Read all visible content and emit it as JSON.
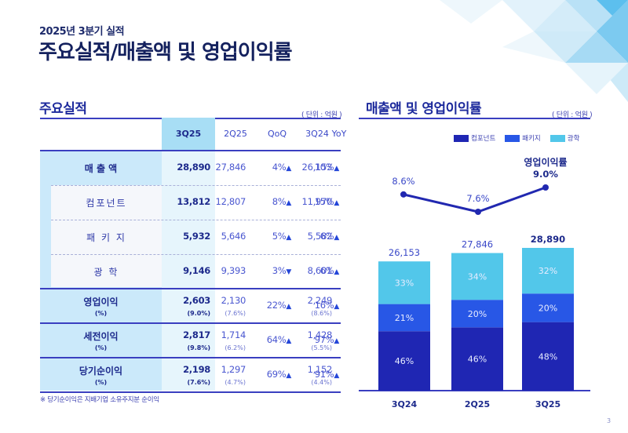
{
  "header": {
    "subtitle": "2025년 3분기 실적",
    "title": "주요실적/매출액 및 영업이익률"
  },
  "table_section": {
    "title": "주요실적",
    "unit": "( 단위 : 억원 )",
    "columns": [
      "3Q25",
      "2Q25",
      "QoQ",
      "3Q24",
      "YoY"
    ],
    "rows": [
      {
        "label": "매 출 액",
        "pct_label": "",
        "q3_25": "28,890",
        "q3_25_pct": "",
        "q2_25": "27,846",
        "q2_25_pct": "",
        "qoq": "4%",
        "qoq_dir": "▲",
        "q3_24": "26,153",
        "q3_24_pct": "",
        "yoy": "10%",
        "yoy_dir": "▲"
      },
      {
        "label": "컴포넌트",
        "pct_label": "",
        "q3_25": "13,812",
        "q3_25_pct": "",
        "q2_25": "12,807",
        "q2_25_pct": "",
        "qoq": "8%",
        "qoq_dir": "▲",
        "q3_24": "11,970",
        "q3_24_pct": "",
        "yoy": "15%",
        "yoy_dir": "▲"
      },
      {
        "label": "패 키 지",
        "pct_label": "",
        "q3_25": "5,932",
        "q3_25_pct": "",
        "q2_25": "5,646",
        "q2_25_pct": "",
        "qoq": "5%",
        "qoq_dir": "▲",
        "q3_24": "5,582",
        "q3_24_pct": "",
        "yoy": "6%",
        "yoy_dir": "▲"
      },
      {
        "label": "광    학",
        "pct_label": "",
        "q3_25": "9,146",
        "q3_25_pct": "",
        "q2_25": "9,393",
        "q2_25_pct": "",
        "qoq": "3%",
        "qoq_dir": "▼",
        "q3_24": "8,601",
        "q3_24_pct": "",
        "yoy": "6%",
        "yoy_dir": "▲"
      },
      {
        "label": "영업이익",
        "pct_label": "(%)",
        "q3_25": "2,603",
        "q3_25_pct": "(9.0%)",
        "q2_25": "2,130",
        "q2_25_pct": "(7.6%)",
        "qoq": "22%",
        "qoq_dir": "▲",
        "q3_24": "2,249",
        "q3_24_pct": "(8.6%)",
        "yoy": "16%",
        "yoy_dir": "▲"
      },
      {
        "label": "세전이익",
        "pct_label": "(%)",
        "q3_25": "2,817",
        "q3_25_pct": "(9.8%)",
        "q2_25": "1,714",
        "q2_25_pct": "(6.2%)",
        "qoq": "64%",
        "qoq_dir": "▲",
        "q3_24": "1,428",
        "q3_24_pct": "(5.5%)",
        "yoy": "97%",
        "yoy_dir": "▲"
      },
      {
        "label": "당기순이익",
        "pct_label": "(%)",
        "q3_25": "2,198",
        "q3_25_pct": "(7.6%)",
        "q2_25": "1,297",
        "q2_25_pct": "(4.7%)",
        "qoq": "69%",
        "qoq_dir": "▲",
        "q3_24": "1,152",
        "q3_24_pct": "(4.4%)",
        "yoy": "91%",
        "yoy_dir": "▲"
      }
    ],
    "footnote": "※ 당기순이익은 지배기업 소유주지분 순이익"
  },
  "chart_section": {
    "title": "매출액 및 영업이익률",
    "unit": "( 단위 : 억원 )"
  },
  "colors": {
    "component": "#1f26b3",
    "package": "#2857e6",
    "optics": "#52c7ea",
    "line": "#2128b0",
    "text_dark": "#1d2a8c"
  },
  "chart_data": {
    "type": "bar",
    "stacked": true,
    "title": "매출액 및 영업이익률",
    "unit": "억원",
    "categories": [
      "3Q24",
      "2Q25",
      "3Q25"
    ],
    "totals": [
      26153,
      27846,
      28890
    ],
    "total_labels": [
      "26,153",
      "27,846",
      "28,890"
    ],
    "series": [
      {
        "name": "컴포넌트",
        "share_pct": [
          46,
          46,
          48
        ],
        "labels": [
          "46%",
          "46%",
          "48%"
        ]
      },
      {
        "name": "패키지",
        "share_pct": [
          21,
          20,
          20
        ],
        "labels": [
          "21%",
          "20%",
          "20%"
        ]
      },
      {
        "name": "광학",
        "share_pct": [
          33,
          34,
          32
        ],
        "labels": [
          "33%",
          "34%",
          "32%"
        ]
      }
    ],
    "line": {
      "name": "영업이익률",
      "values": [
        8.6,
        7.6,
        9.0
      ],
      "labels": [
        "8.6%",
        "7.6%",
        "9.0%"
      ]
    },
    "legend": [
      "컴포넌트",
      "패키지",
      "광학"
    ],
    "legend_position": "top-right",
    "grid": false
  },
  "page": {
    "number": "3"
  }
}
